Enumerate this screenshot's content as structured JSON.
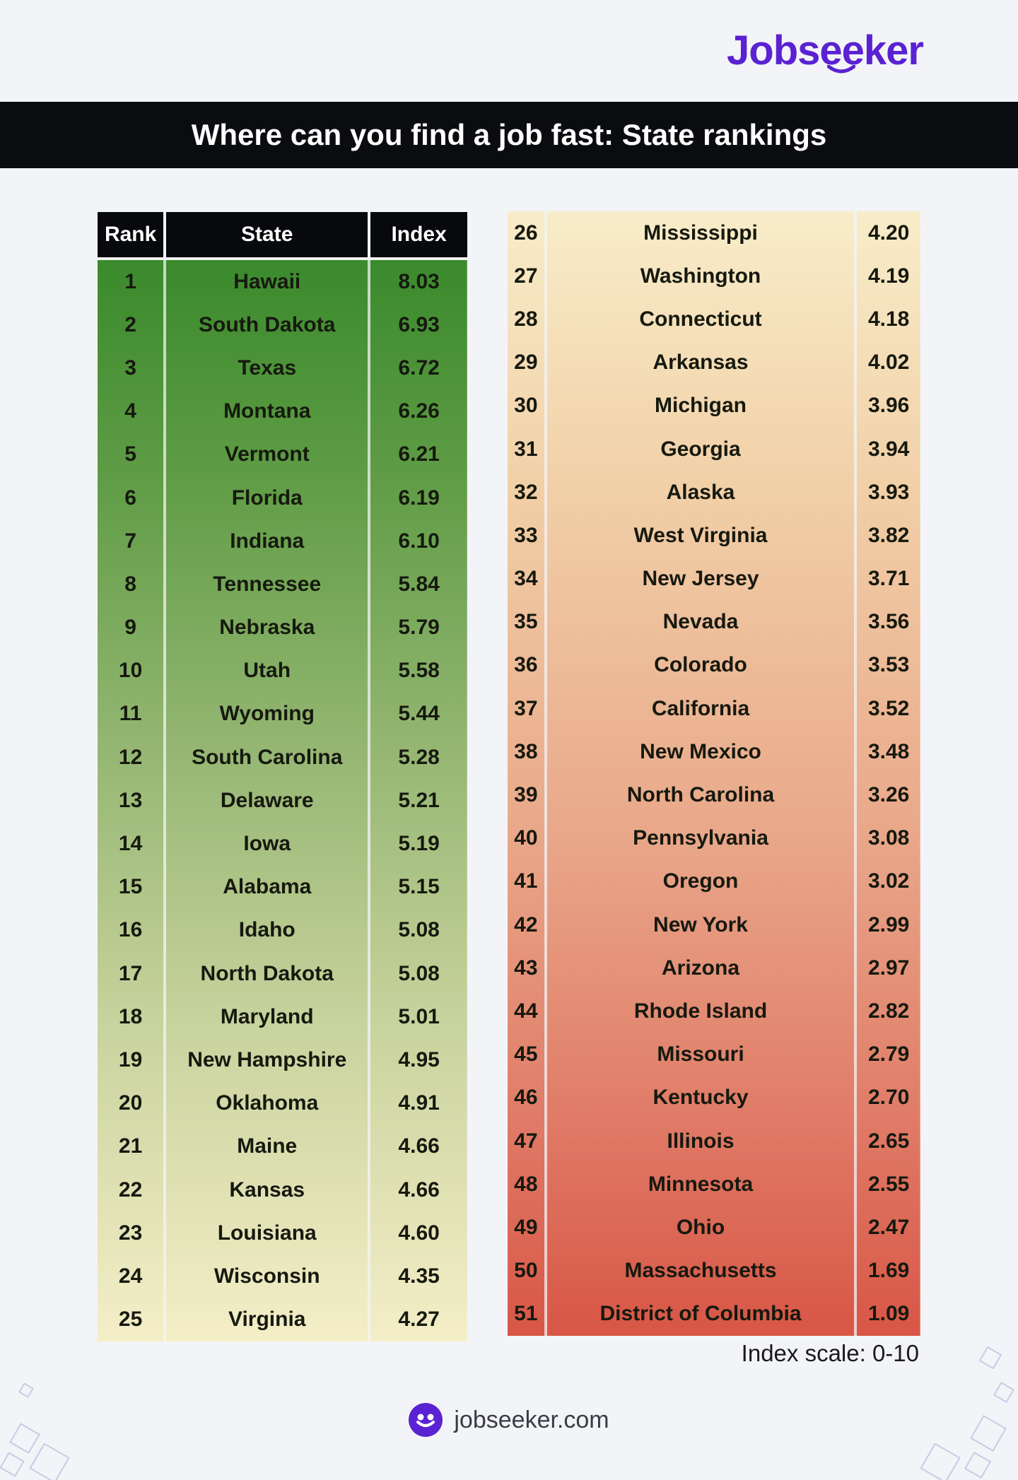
{
  "brand": {
    "logo_text": "Jobseeker",
    "website": "jobseeker.com",
    "brand_color": "#5a22d2"
  },
  "header": {
    "title": "Where can you find a job fast: State rankings"
  },
  "table_headers": {
    "rank": "Rank",
    "state": "State",
    "index": "Index"
  },
  "note": "Index scale: 0-10",
  "colors": {
    "top_green": "#3a8a2c",
    "mid_cream": "#f5eec8",
    "bottom_red": "#d85646"
  },
  "chart_data": {
    "type": "table",
    "title": "Where can you find a job fast: State rankings",
    "columns": [
      "Rank",
      "State",
      "Index"
    ],
    "scale": "Index scale: 0-10",
    "rows": [
      {
        "rank": "1",
        "state": "Hawaii",
        "index": "8.03"
      },
      {
        "rank": "2",
        "state": "South Dakota",
        "index": "6.93"
      },
      {
        "rank": "3",
        "state": "Texas",
        "index": "6.72"
      },
      {
        "rank": "4",
        "state": "Montana",
        "index": "6.26"
      },
      {
        "rank": "5",
        "state": "Vermont",
        "index": "6.21"
      },
      {
        "rank": "6",
        "state": "Florida",
        "index": "6.19"
      },
      {
        "rank": "7",
        "state": "Indiana",
        "index": "6.10"
      },
      {
        "rank": "8",
        "state": "Tennessee",
        "index": "5.84"
      },
      {
        "rank": "9",
        "state": "Nebraska",
        "index": "5.79"
      },
      {
        "rank": "10",
        "state": "Utah",
        "index": "5.58"
      },
      {
        "rank": "11",
        "state": "Wyoming",
        "index": "5.44"
      },
      {
        "rank": "12",
        "state": "South Carolina",
        "index": "5.28"
      },
      {
        "rank": "13",
        "state": "Delaware",
        "index": "5.21"
      },
      {
        "rank": "14",
        "state": "Iowa",
        "index": "5.19"
      },
      {
        "rank": "15",
        "state": "Alabama",
        "index": "5.15"
      },
      {
        "rank": "16",
        "state": "Idaho",
        "index": "5.08"
      },
      {
        "rank": "17",
        "state": "North Dakota",
        "index": "5.08"
      },
      {
        "rank": "18",
        "state": "Maryland",
        "index": "5.01"
      },
      {
        "rank": "19",
        "state": "New Hampshire",
        "index": "4.95"
      },
      {
        "rank": "20",
        "state": "Oklahoma",
        "index": "4.91"
      },
      {
        "rank": "21",
        "state": "Maine",
        "index": "4.66"
      },
      {
        "rank": "22",
        "state": "Kansas",
        "index": "4.66"
      },
      {
        "rank": "23",
        "state": "Louisiana",
        "index": "4.60"
      },
      {
        "rank": "24",
        "state": "Wisconsin",
        "index": "4.35"
      },
      {
        "rank": "25",
        "state": "Virginia",
        "index": "4.27"
      },
      {
        "rank": "26",
        "state": "Mississippi",
        "index": "4.20"
      },
      {
        "rank": "27",
        "state": "Washington",
        "index": "4.19"
      },
      {
        "rank": "28",
        "state": "Connecticut",
        "index": "4.18"
      },
      {
        "rank": "29",
        "state": "Arkansas",
        "index": "4.02"
      },
      {
        "rank": "30",
        "state": "Michigan",
        "index": "3.96"
      },
      {
        "rank": "31",
        "state": "Georgia",
        "index": "3.94"
      },
      {
        "rank": "32",
        "state": "Alaska",
        "index": "3.93"
      },
      {
        "rank": "33",
        "state": "West Virginia",
        "index": "3.82"
      },
      {
        "rank": "34",
        "state": "New Jersey",
        "index": "3.71"
      },
      {
        "rank": "35",
        "state": "Nevada",
        "index": "3.56"
      },
      {
        "rank": "36",
        "state": "Colorado",
        "index": "3.53"
      },
      {
        "rank": "37",
        "state": "California",
        "index": "3.52"
      },
      {
        "rank": "38",
        "state": "New Mexico",
        "index": "3.48"
      },
      {
        "rank": "39",
        "state": "North Carolina",
        "index": "3.26"
      },
      {
        "rank": "40",
        "state": "Pennsylvania",
        "index": "3.08"
      },
      {
        "rank": "41",
        "state": "Oregon",
        "index": "3.02"
      },
      {
        "rank": "42",
        "state": "New York",
        "index": "2.99"
      },
      {
        "rank": "43",
        "state": "Arizona",
        "index": "2.97"
      },
      {
        "rank": "44",
        "state": "Rhode Island",
        "index": "2.82"
      },
      {
        "rank": "45",
        "state": "Missouri",
        "index": "2.79"
      },
      {
        "rank": "46",
        "state": "Kentucky",
        "index": "2.70"
      },
      {
        "rank": "47",
        "state": "Illinois",
        "index": "2.65"
      },
      {
        "rank": "48",
        "state": "Minnesota",
        "index": "2.55"
      },
      {
        "rank": "49",
        "state": "Ohio",
        "index": "2.47"
      },
      {
        "rank": "50",
        "state": "Massachusetts",
        "index": "1.69"
      },
      {
        "rank": "51",
        "state": "District of Columbia",
        "index": "1.09"
      }
    ]
  }
}
